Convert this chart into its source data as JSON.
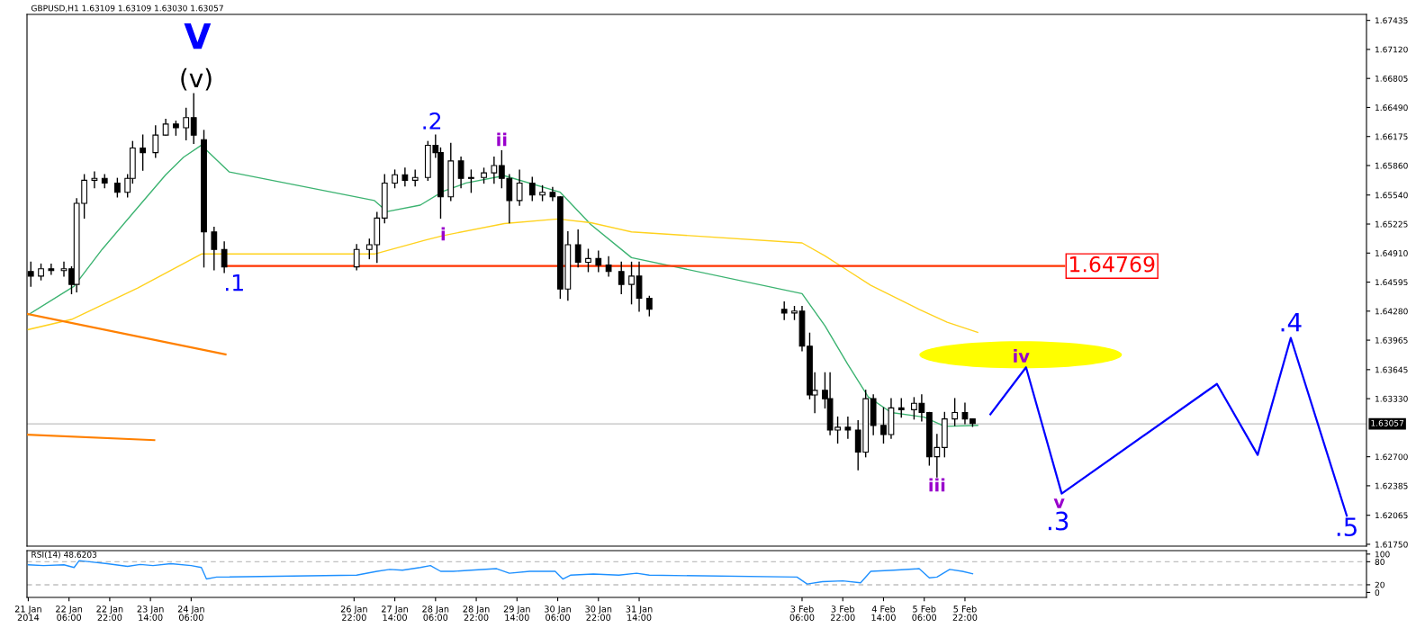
{
  "chart_data": [
    {
      "type": "candlestick",
      "title": "GBPUSD,H1 1.63109 1.63109 1.63030 1.63057",
      "tick_labels": "y",
      "grid": false,
      "x": [
        "2014-01-21T15:00",
        "2014-01-21T19:00",
        "2014-01-21T23:00",
        "2014-01-22T04:00",
        "2014-01-22T07:00",
        "2014-01-22T09:00",
        "2014-01-22T12:00",
        "2014-01-22T16:00",
        "2014-01-22T20:00",
        "2014-01-23T01:00",
        "2014-01-23T05:00",
        "2014-01-23T07:00",
        "2014-01-23T11:00",
        "2014-01-23T16:00",
        "2014-01-23T20:00",
        "2014-01-24T00:00",
        "2014-01-24T04:00",
        "2014-01-24T07:00",
        "2014-01-24T11:00",
        "2014-01-24T15:00",
        "2014-01-24T19:00",
        "2014-01-26T23:00",
        "2014-01-27T04:00",
        "2014-01-27T07:00",
        "2014-01-27T10:00",
        "2014-01-27T14:00",
        "2014-01-27T18:00",
        "2014-01-27T22:00",
        "2014-01-28T03:00",
        "2014-01-28T06:00",
        "2014-01-28T08:00",
        "2014-01-28T12:00",
        "2014-01-28T16:00",
        "2014-01-28T20:00",
        "2014-01-29T01:00",
        "2014-01-29T05:00",
        "2014-01-29T08:00",
        "2014-01-29T11:00",
        "2014-01-29T15:00",
        "2014-01-29T20:00",
        "2014-01-30T00:00",
        "2014-01-30T04:00",
        "2014-01-30T07:00",
        "2014-01-30T10:00",
        "2014-01-30T14:00",
        "2014-01-30T18:00",
        "2014-01-30T22:00",
        "2014-01-31T02:00",
        "2014-01-31T07:00",
        "2014-01-31T11:00",
        "2014-01-31T14:00",
        "2014-01-31T18:00",
        "2014-02-02T23:00",
        "2014-02-03T03:00",
        "2014-02-03T06:00",
        "2014-02-03T09:00",
        "2014-02-03T11:00",
        "2014-02-03T15:00",
        "2014-02-03T17:00",
        "2014-02-03T20:00",
        "2014-02-04T00:00",
        "2014-02-04T04:00",
        "2014-02-04T07:00",
        "2014-02-04T10:00",
        "2014-02-04T14:00",
        "2014-02-04T17:00",
        "2014-02-04T21:00",
        "2014-02-05T02:00",
        "2014-02-05T05:00",
        "2014-02-05T08:00",
        "2014-02-05T11:00",
        "2014-02-05T14:00",
        "2014-02-05T18:00",
        "2014-02-05T22:00",
        "2014-02-06T01:00"
      ],
      "ohlc": [
        [
          1.6471,
          1.6481,
          1.6455,
          1.6466
        ],
        [
          1.6466,
          1.6479,
          1.6462,
          1.6474
        ],
        [
          1.6474,
          1.6479,
          1.6468,
          1.6472
        ],
        [
          1.6472,
          1.6481,
          1.6466,
          1.6474
        ],
        [
          1.6474,
          1.6476,
          1.6447,
          1.6457
        ],
        [
          1.6457,
          1.655,
          1.6449,
          1.6545
        ],
        [
          1.6545,
          1.6576,
          1.6529,
          1.657
        ],
        [
          1.657,
          1.6579,
          1.6562,
          1.6572
        ],
        [
          1.6572,
          1.6576,
          1.6562,
          1.6567
        ],
        [
          1.6567,
          1.6572,
          1.6552,
          1.6557
        ],
        [
          1.6557,
          1.6576,
          1.6552,
          1.6572
        ],
        [
          1.6572,
          1.6612,
          1.6567,
          1.6605
        ],
        [
          1.6605,
          1.6619,
          1.6581,
          1.66
        ],
        [
          1.66,
          1.6629,
          1.6595,
          1.6619
        ],
        [
          1.6619,
          1.6636,
          1.6619,
          1.6631
        ],
        [
          1.6631,
          1.6634,
          1.6619,
          1.6627
        ],
        [
          1.6627,
          1.6648,
          1.6614,
          1.6638
        ],
        [
          1.6638,
          1.6664,
          1.661,
          1.6619
        ],
        [
          1.6614,
          1.6624,
          1.6476,
          1.6514
        ],
        [
          1.6514,
          1.6519,
          1.6473,
          1.6495
        ],
        [
          1.6495,
          1.6503,
          1.647,
          1.6476
        ],
        [
          1.6476,
          1.65,
          1.6473,
          1.6495
        ],
        [
          1.6495,
          1.6506,
          1.6485,
          1.65
        ],
        [
          1.65,
          1.6535,
          1.6481,
          1.6529
        ],
        [
          1.6529,
          1.6576,
          1.6524,
          1.6567
        ],
        [
          1.6567,
          1.6581,
          1.6562,
          1.6576
        ],
        [
          1.6576,
          1.6583,
          1.6564,
          1.657
        ],
        [
          1.657,
          1.6581,
          1.6564,
          1.6573
        ],
        [
          1.6573,
          1.6612,
          1.657,
          1.6608
        ],
        [
          1.6608,
          1.6619,
          1.6595,
          1.66
        ],
        [
          1.66,
          1.6605,
          1.6529,
          1.6552
        ],
        [
          1.6552,
          1.661,
          1.6548,
          1.6591
        ],
        [
          1.6591,
          1.6595,
          1.6562,
          1.6572
        ],
        [
          1.6572,
          1.6581,
          1.6557,
          1.6573
        ],
        [
          1.6573,
          1.6583,
          1.6567,
          1.6578
        ],
        [
          1.6578,
          1.6595,
          1.6567,
          1.6586
        ],
        [
          1.6586,
          1.6602,
          1.6562,
          1.6572
        ],
        [
          1.6572,
          1.6576,
          1.6524,
          1.6548
        ],
        [
          1.6548,
          1.6581,
          1.6543,
          1.6567
        ],
        [
          1.6567,
          1.6573,
          1.6548,
          1.6554
        ],
        [
          1.6554,
          1.6564,
          1.6548,
          1.6557
        ],
        [
          1.6557,
          1.6562,
          1.6548,
          1.6552
        ],
        [
          1.6552,
          1.6552,
          1.6442,
          1.6452
        ],
        [
          1.6452,
          1.6514,
          1.644,
          1.65
        ],
        [
          1.65,
          1.6516,
          1.6476,
          1.6481
        ],
        [
          1.6481,
          1.6495,
          1.6471,
          1.6485
        ],
        [
          1.6485,
          1.6493,
          1.6471,
          1.6478
        ],
        [
          1.6478,
          1.6487,
          1.6466,
          1.6471
        ],
        [
          1.6471,
          1.6481,
          1.6447,
          1.6457
        ],
        [
          1.6457,
          1.6481,
          1.6436,
          1.6466
        ],
        [
          1.6466,
          1.6481,
          1.6428,
          1.6442
        ],
        [
          1.6442,
          1.6444,
          1.6423,
          1.643
        ],
        [
          1.643,
          1.6438,
          1.6419,
          1.6426
        ],
        [
          1.6426,
          1.6433,
          1.6419,
          1.6428
        ],
        [
          1.6428,
          1.6433,
          1.6385,
          1.639
        ],
        [
          1.639,
          1.6404,
          1.6333,
          1.6337
        ],
        [
          1.6337,
          1.6361,
          1.6318,
          1.6342
        ],
        [
          1.6342,
          1.6361,
          1.6323,
          1.6333
        ],
        [
          1.6333,
          1.6361,
          1.6294,
          1.6299
        ],
        [
          1.6299,
          1.6313,
          1.6285,
          1.6302
        ],
        [
          1.6302,
          1.6313,
          1.629,
          1.6299
        ],
        [
          1.6299,
          1.6309,
          1.6256,
          1.6275
        ],
        [
          1.6275,
          1.6342,
          1.627,
          1.6333
        ],
        [
          1.6333,
          1.6337,
          1.6294,
          1.6304
        ],
        [
          1.6304,
          1.6323,
          1.6285,
          1.6294
        ],
        [
          1.6294,
          1.6333,
          1.629,
          1.6323
        ],
        [
          1.6323,
          1.6333,
          1.6313,
          1.6321
        ],
        [
          1.6321,
          1.6334,
          1.6311,
          1.6328
        ],
        [
          1.6328,
          1.6337,
          1.6309,
          1.6318
        ],
        [
          1.6318,
          1.6318,
          1.6261,
          1.627
        ],
        [
          1.627,
          1.6294,
          1.6248,
          1.628
        ],
        [
          1.628,
          1.6318,
          1.627,
          1.6311
        ],
        [
          1.6311,
          1.6333,
          1.6304,
          1.6318
        ],
        [
          1.6318,
          1.6328,
          1.6306,
          1.6311
        ],
        [
          1.6311,
          1.6311,
          1.6303,
          1.6306
        ]
      ],
      "series": [
        {
          "type": "line",
          "color": "#3cb371",
          "x": [
            "2014-01-21T14:00",
            "2014-01-22T08:00",
            "2014-01-22T19:00",
            "2014-01-23T07:00",
            "2014-01-23T20:00",
            "2014-01-24T03:00",
            "2014-01-24T10:00",
            "2014-01-24T21:00",
            "2014-01-27T06:00",
            "2014-01-27T11:00",
            "2014-01-28T00:00",
            "2014-01-28T09:00",
            "2014-01-28T18:00",
            "2014-01-29T09:00",
            "2014-01-30T07:00",
            "2014-01-30T19:00",
            "2014-01-31T11:00",
            "2014-02-03T06:00",
            "2014-02-03T15:00",
            "2014-02-04T00:00",
            "2014-02-04T08:00",
            "2014-02-04T17:00",
            "2014-02-05T06:00",
            "2014-02-05T14:00",
            "2014-02-06T03:00"
          ],
          "values": [
            1.6424,
            1.6455,
            1.6495,
            1.6534,
            1.6576,
            1.6595,
            1.6608,
            1.6579,
            1.6548,
            1.6536,
            1.6543,
            1.6558,
            1.6567,
            1.6575,
            1.6557,
            1.6522,
            1.6486,
            1.6447,
            1.6412,
            1.637,
            1.6335,
            1.6318,
            1.6313,
            1.6303,
            1.6304
          ]
        },
        {
          "type": "line",
          "color": "#ffd21e",
          "x": [
            "2014-01-21T14:00",
            "2014-01-22T07:00",
            "2014-01-23T09:00",
            "2014-01-24T10:00",
            "2014-01-27T06:00",
            "2014-01-28T02:00",
            "2014-01-28T09:00",
            "2014-01-29T09:00",
            "2014-01-30T06:00",
            "2014-01-30T19:00",
            "2014-01-31T11:00",
            "2014-02-03T06:00",
            "2014-02-03T15:00",
            "2014-02-04T00:00",
            "2014-02-04T09:00",
            "2014-02-05T04:00",
            "2014-02-05T15:00",
            "2014-02-06T03:00"
          ],
          "values": [
            1.6408,
            1.6419,
            1.6453,
            1.649,
            1.649,
            1.6505,
            1.651,
            1.6523,
            1.6528,
            1.6524,
            1.6514,
            1.6502,
            1.6488,
            1.6472,
            1.6456,
            1.643,
            1.6416,
            1.6405
          ]
        },
        {
          "type": "line",
          "color": "#ff3300",
          "x": [
            "2014-01-24T20:00",
            "2014-02-07T13:00"
          ],
          "values": [
            1.64769,
            1.64769
          ]
        },
        {
          "type": "line",
          "color": "#ff8000",
          "x": [
            "2014-01-21T13:30",
            "2014-01-24T19:30"
          ],
          "values": [
            1.6425,
            1.6381
          ]
        },
        {
          "type": "line",
          "color": "#ff8000",
          "x": [
            "2014-01-21T13:30",
            "2014-01-23T15:30"
          ],
          "values": [
            1.6294,
            1.6288
          ]
        },
        {
          "type": "line",
          "color": "#0000ff",
          "x": [
            "2014-02-06T08:00",
            "2014-02-06T22:00",
            "2014-02-07T12:00",
            "2014-02-10T01:00",
            "2014-02-10T17:00",
            "2014-02-11T06:00",
            "2014-02-12T04:00"
          ],
          "values": [
            1.6316,
            1.6367,
            1.623,
            1.6349,
            1.6272,
            1.6399,
            1.6206
          ]
        }
      ],
      "ref_lines": [
        {
          "axis": "y",
          "value": 1.63057,
          "label": "1.63057",
          "color": "#c0c0c0"
        }
      ],
      "annotations": [
        {
          "text": "V",
          "x": "2014-01-24T07:00",
          "y": 1.6664
        },
        {
          "text": "(v)",
          "x": "2014-01-24T07:00",
          "y": 1.6664
        },
        {
          "text": ".2",
          "x": "2014-01-28T06:00",
          "y": 1.6619
        },
        {
          "text": "ii",
          "x": "2014-01-29T08:00",
          "y": 1.6602
        },
        {
          "text": "i",
          "x": "2014-01-28T09:00",
          "y": 1.651
        },
        {
          "text": ".1",
          "x": "2014-01-24T19:00",
          "y": 1.647
        },
        {
          "text": "iii",
          "x": "2014-02-05T11:00",
          "y": 1.6248
        },
        {
          "text": "iv",
          "x": "2014-02-06T22:00",
          "y": 1.6367
        },
        {
          "text": "v",
          "x": "2014-02-07T12:00",
          "y": 1.623
        },
        {
          "text": ".3",
          "x": "2014-02-07T12:00",
          "y": 1.623
        },
        {
          "text": ".4",
          "x": "2014-02-11T06:00",
          "y": 1.6399
        },
        {
          "text": ".5",
          "x": "2014-02-12T04:00",
          "y": 1.6206
        },
        {
          "text": "1.64769",
          "x": "2014-02-07T13:00",
          "y": 1.64769
        }
      ],
      "xlim": [
        "2014-01-21T13:30",
        "2014-02-12T11:45"
      ],
      "ylim": [
        1.6173,
        1.675
      ],
      "yticks": [
        1.67435,
        {
          "value": 1.6712,
          "label": "1.67120"
        },
        1.66805,
        {
          "value": 1.6649,
          "label": "1.66490"
        },
        1.66175,
        {
          "value": 1.6586,
          "label": "1.65860"
        },
        {
          "value": 1.6554,
          "label": "1.65540"
        },
        1.65225,
        {
          "value": 1.6491,
          "label": "1.64910"
        },
        1.64595,
        {
          "value": 1.6428,
          "label": "1.64280"
        },
        1.63965,
        1.63645,
        {
          "value": 1.6333,
          "label": "1.63330"
        },
        {
          "value": 1.627,
          "label": "1.62700"
        },
        1.62385,
        1.62065,
        {
          "value": 1.6175,
          "label": "1.61750"
        }
      ]
    },
    {
      "type": "line",
      "title": "RSI(14) 48.6203",
      "grid": false,
      "color": "#1e90ff",
      "x": [
        "2014-01-21T14:00",
        "2014-01-21T20:00",
        "2014-01-22T04:00",
        "2014-01-22T08:00",
        "2014-01-22T10:00",
        "2014-01-22T14:00",
        "2014-01-22T21:00",
        "2014-01-23T05:00",
        "2014-01-23T10:00",
        "2014-01-23T15:00",
        "2014-01-23T22:00",
        "2014-01-24T06:00",
        "2014-01-24T10:00",
        "2014-01-24T12:00",
        "2014-01-24T16:00",
        "2014-01-26T23:00",
        "2014-01-27T07:00",
        "2014-01-27T12:00",
        "2014-01-27T17:00",
        "2014-01-28T00:00",
        "2014-01-28T04:00",
        "2014-01-28T08:00",
        "2014-01-28T13:00",
        "2014-01-28T20:00",
        "2014-01-29T06:00",
        "2014-01-29T11:00",
        "2014-01-29T19:00",
        "2014-01-30T05:00",
        "2014-01-30T08:00",
        "2014-01-30T11:00",
        "2014-01-30T20:00",
        "2014-01-31T06:00",
        "2014-01-31T13:00",
        "2014-01-31T18:00",
        "2014-02-03T04:00",
        "2014-02-03T08:00",
        "2014-02-03T14:00",
        "2014-02-03T22:00",
        "2014-02-04T05:00",
        "2014-02-04T09:00",
        "2014-02-04T18:00",
        "2014-02-05T04:00",
        "2014-02-05T08:00",
        "2014-02-05T11:00",
        "2014-02-05T16:00",
        "2014-02-05T21:00",
        "2014-02-06T01:00"
      ],
      "values": [
        72,
        70,
        72,
        65,
        83,
        80,
        75,
        68,
        73,
        70,
        75,
        70,
        65,
        35,
        40,
        45,
        55,
        60,
        58,
        65,
        70,
        55,
        55,
        58,
        62,
        50,
        55,
        55,
        35,
        45,
        48,
        45,
        50,
        45,
        40,
        22,
        28,
        30,
        25,
        55,
        58,
        62,
        38,
        40,
        60,
        55,
        48.6
      ],
      "xlim": [
        "2014-01-21T13:30",
        "2014-02-12T11:45"
      ],
      "ylim": [
        -13,
        109
      ],
      "yticks": [
        0,
        20,
        80,
        100
      ],
      "xticks": [
        {
          "value": "2014-01-21T14:00",
          "label": "21 Jan 2014"
        },
        {
          "value": "2014-01-22T06:00",
          "label": "22 Jan 06:00"
        },
        {
          "value": "2014-01-22T22:00",
          "label": "22 Jan 22:00"
        },
        {
          "value": "2014-01-23T14:00",
          "label": "23 Jan 14:00"
        },
        {
          "value": "2014-01-24T06:00",
          "label": "24 Jan 06:00"
        },
        {
          "value": "2014-01-26T22:00",
          "label": "26 Jan 22:00"
        },
        {
          "value": "2014-01-27T14:00",
          "label": "27 Jan 14:00"
        },
        {
          "value": "2014-01-28T06:00",
          "label": "28 Jan 06:00"
        },
        {
          "value": "2014-01-28T22:00",
          "label": "28 Jan 22:00"
        },
        {
          "value": "2014-01-29T14:00",
          "label": "29 Jan 14:00"
        },
        {
          "value": "2014-01-30T06:00",
          "label": "30 Jan 06:00"
        },
        {
          "value": "2014-01-30T22:00",
          "label": "30 Jan 22:00"
        },
        {
          "value": "2014-01-31T14:00",
          "label": "31 Jan 14:00"
        },
        {
          "value": "2014-02-03T06:00",
          "label": "3 Feb 06:00"
        },
        {
          "value": "2014-02-03T22:00",
          "label": "3 Feb 22:00"
        },
        {
          "value": "2014-02-04T14:00",
          "label": "4 Feb 14:00"
        },
        {
          "value": "2014-02-05T06:00",
          "label": "5 Feb 06:00"
        },
        {
          "value": "2014-02-05T22:00",
          "label": "5 Feb 22:00"
        }
      ],
      "ref_lines": [
        {
          "axis": "y",
          "value": 80,
          "color": "#c0c0c0",
          "line_style": "dashed"
        },
        {
          "axis": "y",
          "value": 20,
          "color": "#c0c0c0",
          "line_style": "dashed"
        }
      ]
    }
  ]
}
